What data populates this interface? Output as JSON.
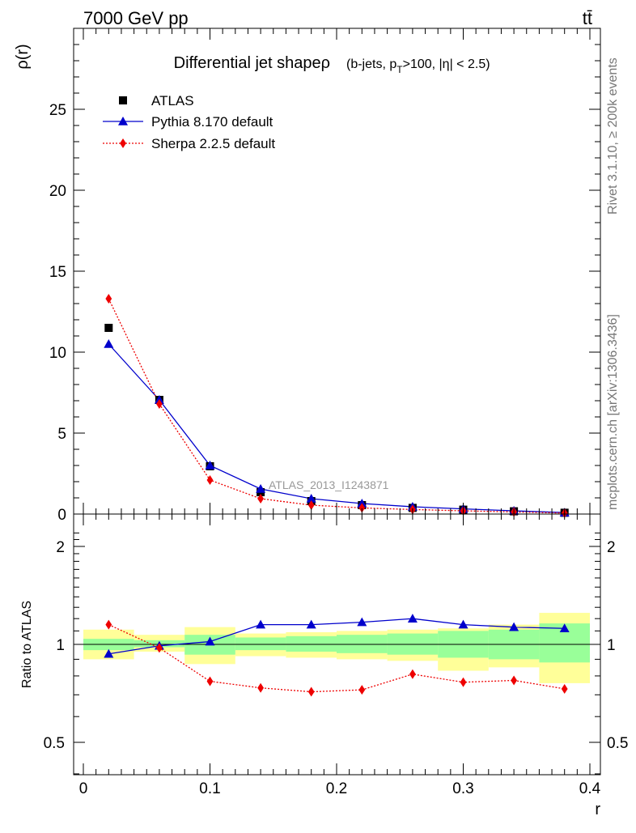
{
  "header": {
    "energy_label": "7000 GeV pp",
    "process_label": "tt̄"
  },
  "side_text": {
    "rivet": "Rivet 3.1.10, ≥ 200k events",
    "mcplots": "mcplots.cern.ch [arXiv:1306.3436]"
  },
  "chart_data": [
    {
      "type": "scatter",
      "title": "Differential jet shapeρ",
      "title_suffix": "(b-jets, p_T>100, |η| < 2.5)",
      "title_suffix_parts": {
        "a": "(b-jets, p",
        "sub": "T",
        "b": ">100, |η| < 2.5)"
      },
      "ylabel": "ρ(r)",
      "xlim": [
        0,
        0.4
      ],
      "ylim": [
        0,
        30
      ],
      "yticks": [
        0,
        5,
        10,
        15,
        20,
        25
      ],
      "annotation": "ATLAS_2013_I1243871",
      "legend_position": "top-left",
      "x": [
        0.02,
        0.06,
        0.1,
        0.14,
        0.18,
        0.22,
        0.26,
        0.3,
        0.34,
        0.38
      ],
      "series": [
        {
          "name": "ATLAS",
          "marker": "square",
          "color": "#000000",
          "line": "none",
          "values": [
            11.5,
            7.05,
            2.95,
            1.35,
            0.8,
            0.55,
            0.38,
            0.27,
            0.17,
            0.08
          ]
        },
        {
          "name": "Pythia 8.170 default",
          "marker": "triangle",
          "color": "#0000cc",
          "line": "solid",
          "values": [
            10.5,
            7.05,
            3.0,
            1.55,
            0.95,
            0.65,
            0.45,
            0.32,
            0.2,
            0.09
          ]
        },
        {
          "name": "Sherpa 2.2.5 default",
          "marker": "diamond",
          "color": "#ee0000",
          "line": "dotted",
          "values": [
            13.3,
            6.8,
            2.1,
            0.95,
            0.55,
            0.38,
            0.28,
            0.2,
            0.13,
            0.06
          ]
        }
      ]
    },
    {
      "type": "line",
      "ylabel": "Ratio to ATLAS",
      "xlabel": "r",
      "xlim": [
        0,
        0.4
      ],
      "ylim": [
        0.35,
        2.35
      ],
      "yticks": [
        0.5,
        1,
        2
      ],
      "xticks": [
        0,
        0.1,
        0.2,
        0.3,
        0.4
      ],
      "x": [
        0.02,
        0.06,
        0.1,
        0.14,
        0.18,
        0.22,
        0.26,
        0.3,
        0.34,
        0.38
      ],
      "bin_edges": [
        0,
        0.04,
        0.08,
        0.12,
        0.16,
        0.2,
        0.24,
        0.28,
        0.32,
        0.36,
        0.4
      ],
      "band_green": [
        [
          0.96,
          1.04
        ],
        [
          0.98,
          1.03
        ],
        [
          0.93,
          1.07
        ],
        [
          0.96,
          1.05
        ],
        [
          0.95,
          1.06
        ],
        [
          0.94,
          1.07
        ],
        [
          0.93,
          1.08
        ],
        [
          0.91,
          1.1
        ],
        [
          0.9,
          1.11
        ],
        [
          0.88,
          1.16
        ]
      ],
      "band_yellow": [
        [
          0.9,
          1.11
        ],
        [
          0.95,
          1.07
        ],
        [
          0.87,
          1.13
        ],
        [
          0.92,
          1.08
        ],
        [
          0.91,
          1.09
        ],
        [
          0.9,
          1.1
        ],
        [
          0.89,
          1.11
        ],
        [
          0.83,
          1.12
        ],
        [
          0.85,
          1.15
        ],
        [
          0.76,
          1.25
        ]
      ],
      "series": [
        {
          "name": "Pythia 8.170 default",
          "marker": "triangle",
          "color": "#0000cc",
          "line": "solid",
          "values": [
            0.935,
            0.99,
            1.02,
            1.15,
            1.15,
            1.17,
            1.2,
            1.15,
            1.13,
            1.12
          ]
        },
        {
          "name": "Sherpa 2.2.5 default",
          "marker": "diamond",
          "color": "#ee0000",
          "line": "dotted",
          "values": [
            1.15,
            0.975,
            0.77,
            0.735,
            0.715,
            0.725,
            0.81,
            0.765,
            0.775,
            0.73
          ]
        }
      ]
    }
  ]
}
